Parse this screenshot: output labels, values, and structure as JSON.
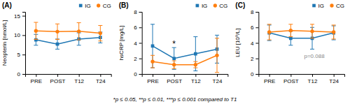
{
  "chart_data": [
    {
      "type": "line",
      "title": "(A)",
      "ylabel": "Neopterin [nmol/L]",
      "categories": [
        "PRE",
        "POST",
        "T12",
        "T24"
      ],
      "series": [
        {
          "name": "IG",
          "marker": "square",
          "values": [
            8.8,
            7.7,
            9.0,
            9.4
          ],
          "errors": [
            1.4,
            1.3,
            1.6,
            1.4
          ]
        },
        {
          "name": "CG",
          "marker": "circle",
          "values": [
            11.1,
            10.9,
            11.0,
            10.5
          ],
          "errors": [
            2.2,
            2.0,
            2.2,
            2.0
          ]
        }
      ],
      "ylim": [
        0,
        16
      ],
      "yticks": [
        0,
        5,
        10,
        15
      ],
      "legend": "upper right",
      "grid": false
    },
    {
      "type": "line",
      "title": "(B)",
      "ylabel": "hsCRP [mg/L]",
      "categories": [
        "PRE",
        "POST",
        "T12",
        "T24"
      ],
      "series": [
        {
          "name": "IG",
          "marker": "square",
          "values": [
            3.6,
            2.0,
            2.6,
            3.2
          ],
          "errors": [
            2.8,
            1.4,
            2.2,
            1.8
          ]
        },
        {
          "name": "CG",
          "marker": "circle",
          "values": [
            1.6,
            1.2,
            1.2,
            2.4
          ],
          "errors": [
            0.8,
            0.5,
            0.4,
            2.2
          ]
        }
      ],
      "ylim": [
        0,
        8
      ],
      "yticks": [
        0,
        2,
        4,
        6,
        8
      ],
      "legend": "upper right",
      "grid": false,
      "annotations": [
        {
          "text": "*",
          "x": 1,
          "y": 3.55
        }
      ]
    },
    {
      "type": "line",
      "title": "(C)",
      "ylabel": "LEU [10⁹/L]",
      "categories": [
        "PRE",
        "POST",
        "T12",
        "T24"
      ],
      "series": [
        {
          "name": "IG",
          "marker": "square",
          "values": [
            5.3,
            4.6,
            4.6,
            5.3
          ],
          "errors": [
            1.0,
            0.9,
            1.4,
            0.9
          ]
        },
        {
          "name": "CG",
          "marker": "circle",
          "values": [
            5.4,
            5.6,
            5.5,
            5.4
          ],
          "errors": [
            1.0,
            0.8,
            0.9,
            0.9
          ]
        }
      ],
      "ylim": [
        0,
        8
      ],
      "yticks": [
        0,
        2,
        4,
        6,
        8
      ],
      "legend": "upper right",
      "grid": false,
      "annotations": [
        {
          "text": "p=0.088",
          "x": 2.1,
          "y": 2.1
        }
      ]
    }
  ],
  "footer": "*p ≤ 0.05, **p ≤ 0.01, ***p ≤ 0.001 compared to T1"
}
